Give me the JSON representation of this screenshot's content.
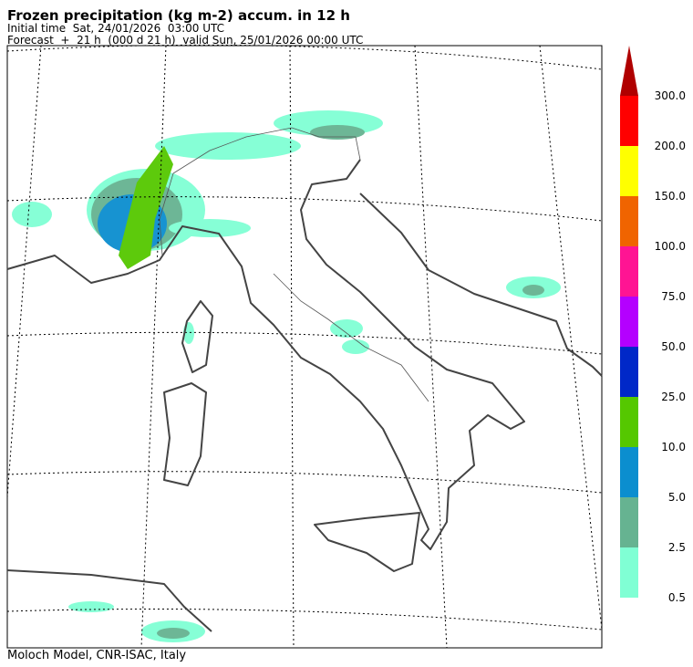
{
  "header": {
    "title": "Frozen precipitation (kg m-2) accum. in 12 h",
    "initial_time": "Initial time  Sat, 24/01/2026  03:00 UTC",
    "forecast": "Forecast  +  21 h  (000 d 21 h)  valid Sun, 25/01/2026 00:00 UTC"
  },
  "colorbar": {
    "levels": [
      {
        "value": 0.5,
        "label": "0.5"
      },
      2.5,
      {
        "value": 5,
        "label": "5.0"
      },
      {
        "value": 10,
        "label": "10.0"
      },
      {
        "value": 25,
        "label": "25.0"
      },
      {
        "value": 50,
        "label": "50.0"
      },
      {
        "value": 75,
        "label": "75.0"
      },
      {
        "value": 100,
        "label": "100.0"
      },
      {
        "value": 150,
        "label": "150.0"
      },
      {
        "value": 200,
        "label": "200.0"
      },
      {
        "value": 300,
        "label": "300.0"
      }
    ],
    "colors": [
      "#80ffd4",
      "#66b391",
      "#0b8ecf",
      "#55c800",
      "#0028c8",
      "#b400ff",
      "#ff1493",
      "#f06400",
      "#ffff00",
      "#ff0000",
      "#b00000"
    ]
  },
  "footer": "Moloch Model, CNR-ISAC, Italy"
}
